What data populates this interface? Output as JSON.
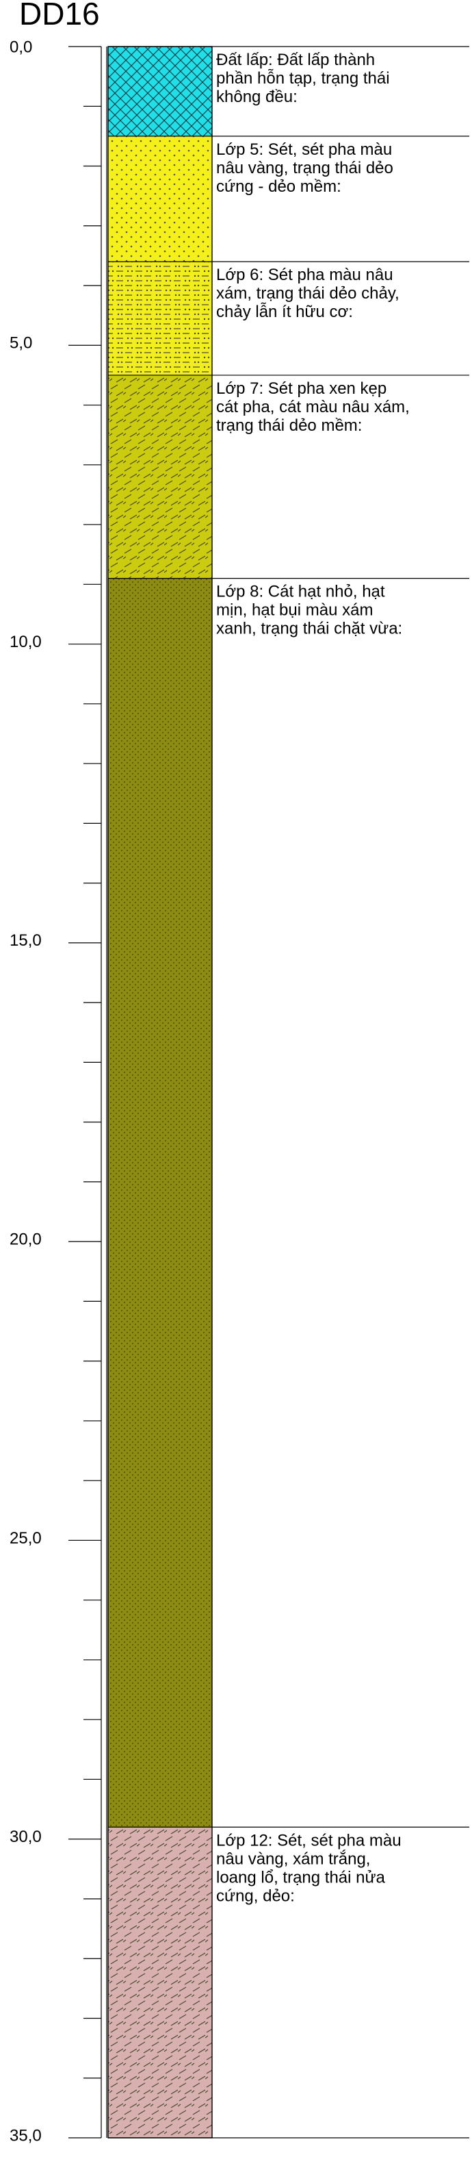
{
  "borehole": {
    "name": "DD16",
    "depth_unit": "m",
    "depth_range": [
      0,
      35
    ],
    "major_tick_labels": [
      "0,0",
      "5,0",
      "10,0",
      "15,0",
      "20,0",
      "25,0",
      "30,0",
      "35,0"
    ],
    "major_tick_values": [
      0,
      5,
      10,
      15,
      20,
      25,
      30,
      35
    ],
    "minor_tick_step": 1
  },
  "layers": [
    {
      "top": 0.0,
      "bottom": 1.5,
      "color": "#1fe0e8",
      "pattern": "crosshatch",
      "description": [
        "Đất lấp: Đất lấp thành",
        "phần hỗn tạp, trạng thái",
        "không đều:"
      ]
    },
    {
      "top": 1.5,
      "bottom": 3.6,
      "color": "#f6f01a",
      "pattern": "dots",
      "description": [
        "Lớp 5: Sét, sét pha màu",
        "nâu vàng, trạng thái dẻo",
        "cứng - dẻo mềm:"
      ]
    },
    {
      "top": 3.6,
      "bottom": 5.5,
      "color": "#f2ee1e",
      "pattern": "dash-dots",
      "description": [
        "Lớp 6: Sét pha màu nâu",
        "xám, trạng thái dẻo chảy,",
        "chảy lẫn ít hữu cơ:"
      ]
    },
    {
      "top": 5.5,
      "bottom": 8.9,
      "color": "#cbcc10",
      "pattern": "diagonal-dash",
      "description": [
        "Lớp 7: Sét pha xen kẹp",
        "cát pha, cát màu nâu xám,",
        "trạng thái dẻo mềm:"
      ]
    },
    {
      "top": 8.9,
      "bottom": 29.8,
      "color": "#8c8c12",
      "pattern": "fine-dots",
      "description": [
        "Lớp 8: Cát hạt nhỏ, hạt",
        "mịn, hạt bụi màu xám",
        "xanh, trạng thái chặt vừa:"
      ]
    },
    {
      "top": 29.8,
      "bottom": 35.0,
      "color": "#d8b0b0",
      "pattern": "diagonal-dash",
      "description": [
        "Lớp 12: Sét, sét pha màu",
        "nâu vàng, xám trắng,",
        "loang lổ, trạng thái nửa",
        "cứng, dẻo:"
      ]
    }
  ]
}
